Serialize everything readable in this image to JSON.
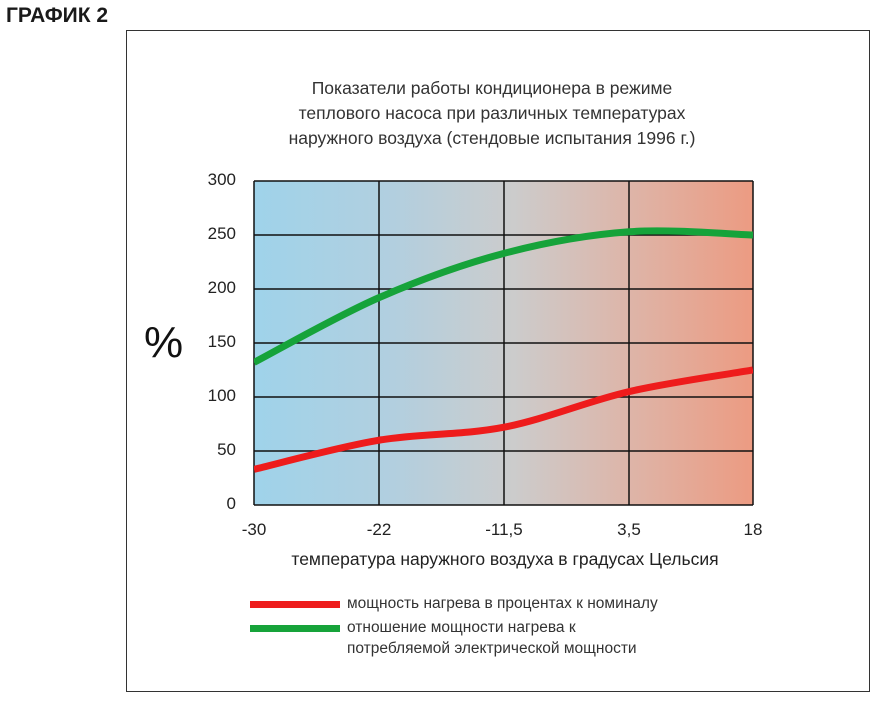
{
  "heading": "ГРАФИК 2",
  "chart_data": {
    "type": "line",
    "title": "Показатели работы кондиционера в режиме\nтеплового насоса при различных температурах\nнаружного воздуха (стендовые испытания 1996 г.)",
    "ylabel": "%",
    "xlabel": "температура наружного воздуха в градусах Цельсия",
    "x_ticks": [
      "-30",
      "-22",
      "-11,5",
      "3,5",
      "18"
    ],
    "y_ticks": [
      "0",
      "50",
      "100",
      "150",
      "200",
      "250",
      "300"
    ],
    "ylim": [
      0,
      300
    ],
    "grid": true,
    "legend_position": "bottom",
    "background": "gradient blue to red",
    "series": [
      {
        "name": "мощность нагрева в процентах к номиналу",
        "color": "#ee1c1c",
        "x": [
          "-30",
          "-22",
          "-11,5",
          "3,5",
          "18"
        ],
        "values": [
          33,
          60,
          72,
          105,
          125
        ]
      },
      {
        "name": "отношение мощности нагрева к\nпотребляемой электрической мощности",
        "color": "#16a33a",
        "x": [
          "-30",
          "-22",
          "-11,5",
          "3,5",
          "18"
        ],
        "values": [
          132,
          192,
          233,
          253,
          250
        ]
      }
    ]
  }
}
